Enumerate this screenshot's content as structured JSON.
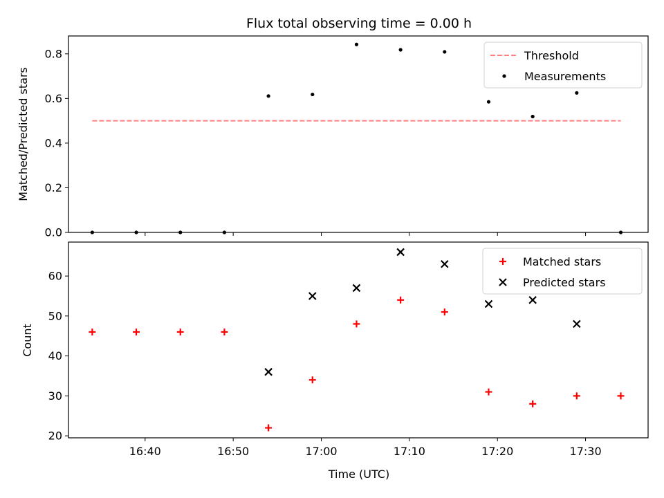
{
  "chart_data": [
    {
      "type": "scatter",
      "title": "Flux total observing time = 0.00 h",
      "ylabel": "Matched/Predicted stars",
      "xlabel": "",
      "ylim": [
        0,
        0.88
      ],
      "yticks": [
        0.0,
        0.2,
        0.4,
        0.6,
        0.8
      ],
      "ytick_labels": [
        "0.0",
        "0.2",
        "0.4",
        "0.6",
        "0.8"
      ],
      "legend_position": "top-right",
      "series": [
        {
          "name": "Threshold",
          "kind": "dashed-line",
          "color": "#ff7f7f",
          "x": [
            "16:34",
            "17:34"
          ],
          "y": [
            0.5,
            0.5
          ]
        },
        {
          "name": "Measurements",
          "kind": "dot",
          "color": "#000000",
          "x": [
            "16:34",
            "16:39",
            "16:44",
            "16:49",
            "16:54",
            "16:59",
            "17:04",
            "17:09",
            "17:14",
            "17:19",
            "17:24",
            "17:29",
            "17:34"
          ],
          "y": [
            0.0,
            0.0,
            0.0,
            0.0,
            0.611,
            0.618,
            0.842,
            0.818,
            0.809,
            0.585,
            0.519,
            0.625,
            0.0
          ]
        }
      ]
    },
    {
      "type": "scatter",
      "title": "",
      "ylabel": "Count",
      "xlabel": "Time (UTC)",
      "ylim": [
        19.5,
        68.5
      ],
      "yticks": [
        20,
        30,
        40,
        50,
        60
      ],
      "ytick_labels": [
        "20",
        "30",
        "40",
        "50",
        "60"
      ],
      "xticks": [
        "16:40",
        "16:50",
        "17:00",
        "17:10",
        "17:20",
        "17:30"
      ],
      "legend_position": "top-right",
      "series": [
        {
          "name": "Matched stars",
          "kind": "plus",
          "color": "#ff0000",
          "x": [
            "16:34",
            "16:39",
            "16:44",
            "16:49",
            "16:54",
            "16:59",
            "17:04",
            "17:09",
            "17:14",
            "17:19",
            "17:24",
            "17:29",
            "17:34"
          ],
          "y": [
            46,
            46,
            46,
            46,
            22,
            34,
            48,
            54,
            51,
            31,
            28,
            30,
            30
          ]
        },
        {
          "name": "Predicted stars",
          "kind": "cross",
          "color": "#000000",
          "x": [
            "16:54",
            "16:59",
            "17:04",
            "17:09",
            "17:14",
            "17:19",
            "17:24",
            "17:29"
          ],
          "y": [
            36,
            55,
            57,
            66,
            63,
            53,
            54,
            48
          ]
        }
      ]
    }
  ]
}
